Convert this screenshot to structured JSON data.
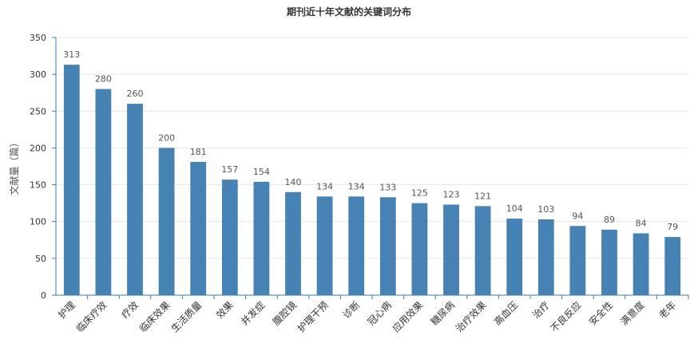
{
  "chart_data": {
    "type": "bar",
    "title": "期刊近十年文献的关键词分布",
    "xlabel": "",
    "ylabel": "文献量（篇）",
    "ylim": [
      0,
      350
    ],
    "yticks": [
      0,
      50,
      100,
      150,
      200,
      250,
      300,
      350
    ],
    "grid": true,
    "legend": "none",
    "categories": [
      "护理",
      "临床疗效",
      "疗效",
      "临床效果",
      "生活质量",
      "效果",
      "并发症",
      "腹腔镜",
      "护理干预",
      "诊断",
      "冠心病",
      "应用效果",
      "糖尿病",
      "治疗效果",
      "高血压",
      "治疗",
      "不良反应",
      "安全性",
      "满意度",
      "老年"
    ],
    "values": [
      313,
      280,
      260,
      200,
      181,
      157,
      154,
      140,
      134,
      134,
      133,
      125,
      123,
      121,
      104,
      103,
      94,
      89,
      84,
      79
    ],
    "colors": {
      "bar": "#4682b4",
      "axis": "#3a7ca5",
      "grid": "#e6e6e6",
      "text": "#333333",
      "label": "#555555"
    }
  }
}
